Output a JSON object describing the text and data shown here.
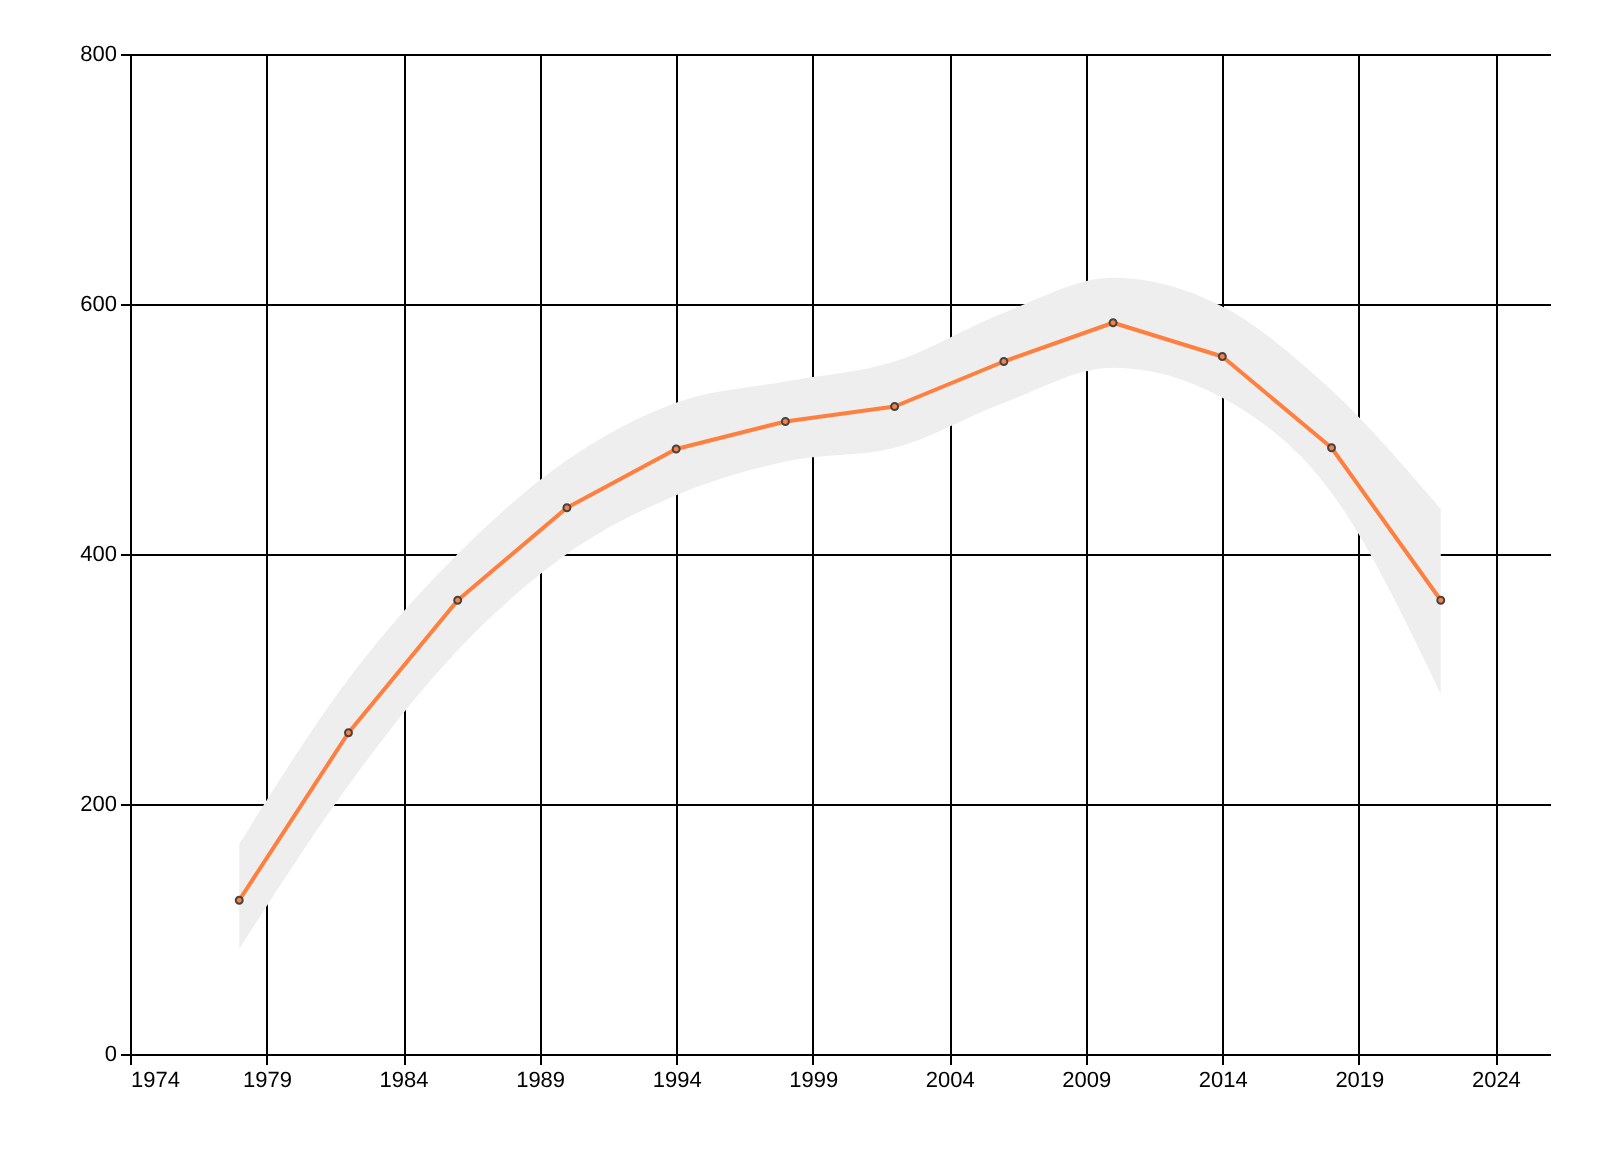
{
  "chart_data": {
    "type": "line",
    "x": [
      1978,
      1982,
      1986,
      1990,
      1994,
      1998,
      2002,
      2006,
      2010,
      2014,
      2018,
      2022
    ],
    "series": [
      {
        "color": "#ff7f3f",
        "values": [
          123,
          257,
          363,
          437,
          484,
          506,
          518,
          554,
          585,
          558,
          485,
          363
        ],
        "lower": [
          84,
          215,
          323,
          400,
          447,
          474,
          485,
          521,
          549,
          525,
          449,
          288
        ],
        "upper": [
          168,
          300,
          400,
          475,
          521,
          538,
          554,
          593,
          621,
          598,
          531,
          436
        ]
      }
    ],
    "xlim": [
      1974,
      2026
    ],
    "xticks": [
      1974,
      1979,
      1984,
      1989,
      1994,
      1999,
      2004,
      2009,
      2014,
      2019,
      2024
    ],
    "ylim": [
      0,
      800
    ],
    "yticks": [
      0,
      200,
      400,
      600,
      800
    ],
    "grid": true,
    "marker": "circle",
    "line_style": "solid"
  }
}
